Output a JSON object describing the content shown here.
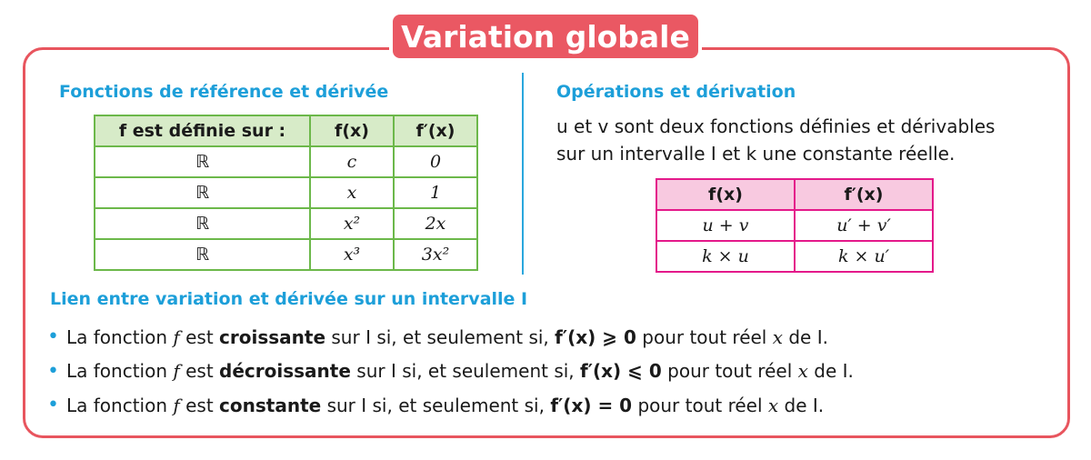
{
  "title": "Variation globale",
  "colors": {
    "frame": "#e8555e",
    "heading": "#1d9fd9",
    "green_table": "#6cb84a",
    "pink_table": "#e4198a"
  },
  "left": {
    "heading": "Fonctions de référence et dérivée",
    "headers": [
      "f est définie sur :",
      "f(x)",
      "f′(x)"
    ],
    "rows": [
      [
        "ℝ",
        "c",
        "0"
      ],
      [
        "ℝ",
        "x",
        "1"
      ],
      [
        "ℝ",
        "x²",
        "2x"
      ],
      [
        "ℝ",
        "x³",
        "3x²"
      ]
    ]
  },
  "right": {
    "heading": "Opérations et dérivation",
    "paragraph_1": "u et v sont deux fonctions définies et dérivables",
    "paragraph_2": "sur un intervalle I et k une constante réelle.",
    "headers": [
      "f(x)",
      "f′(x)"
    ],
    "rows": [
      [
        "u + v",
        "u′ + v′"
      ],
      [
        "k × u",
        "k × u′"
      ]
    ]
  },
  "bottom": {
    "heading": "Lien entre variation et dérivée sur un intervalle I",
    "prefix": "La fonction ",
    "f": "f",
    "est": " est ",
    "middle": " sur I si, et seulement si, ",
    "suffix": " pour tout réel ",
    "x": "x",
    "end": " de I.",
    "bullets": [
      {
        "word": "croissante",
        "condition": "f′(x) ⩾ 0"
      },
      {
        "word": "décroissante",
        "condition": "f′(x) ⩽ 0"
      },
      {
        "word": "constante",
        "condition": "f′(x) = 0"
      }
    ]
  }
}
